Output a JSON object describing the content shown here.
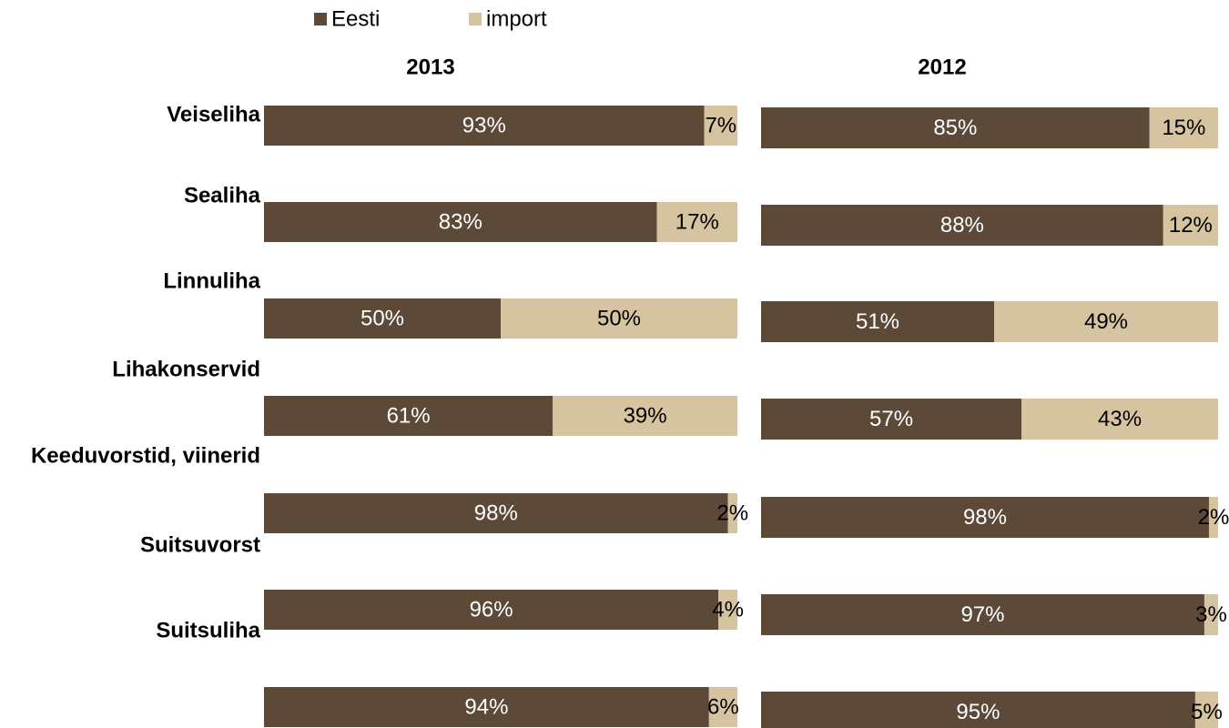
{
  "chart_data": {
    "type": "bar",
    "orientation": "horizontal",
    "stacked": "100%",
    "legend": {
      "placement": "top-left",
      "items": [
        {
          "name": "Eesti",
          "color": "#5C4938"
        },
        {
          "name": "import",
          "color": "#D6C39F"
        }
      ]
    },
    "category_labels": [
      "Veiseliha",
      "Sealiha",
      "Linnuliha",
      "Lihakonservid",
      "Keeduvorstid, viinerid",
      "Suitsuvorst",
      "Suitsuliha"
    ],
    "panels": [
      {
        "title": "2013",
        "series": [
          {
            "name": "Eesti",
            "color": "#5C4938",
            "values": [
              93,
              83,
              50,
              61,
              98,
              96,
              94
            ],
            "labels": [
              "93%",
              "83%",
              "50%",
              "61%",
              "98%",
              "96%",
              "94%"
            ]
          },
          {
            "name": "import",
            "color": "#D6C39F",
            "values": [
              7,
              17,
              50,
              39,
              2,
              4,
              6
            ],
            "labels": [
              "7%",
              "17%",
              "50%",
              "39%",
              "2%",
              "4%",
              "6%"
            ]
          }
        ],
        "xlim": [
          0,
          100
        ]
      },
      {
        "title": "2012",
        "series": [
          {
            "name": "Eesti",
            "color": "#5C4938",
            "values": [
              85,
              88,
              51,
              57,
              98,
              97,
              95
            ],
            "labels": [
              "85%",
              "88%",
              "51%",
              "57%",
              "98%",
              "97%",
              "95%"
            ]
          },
          {
            "name": "import",
            "color": "#D6C39F",
            "values": [
              15,
              12,
              49,
              43,
              2,
              3,
              5
            ],
            "labels": [
              "15%",
              "12%",
              "49%",
              "43%",
              "2%",
              "3%",
              "5%"
            ]
          }
        ],
        "xlim": [
          0,
          100
        ]
      }
    ],
    "grid": false
  }
}
